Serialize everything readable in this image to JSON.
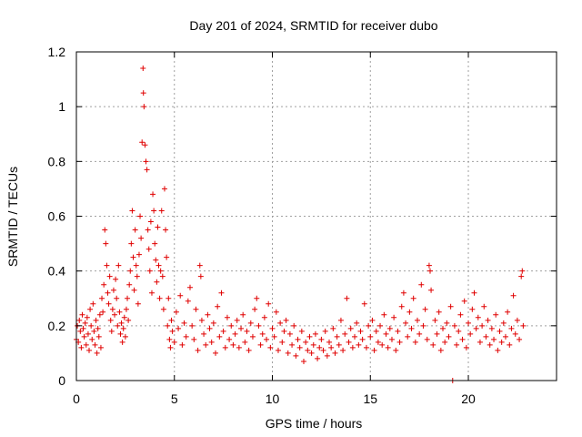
{
  "chart_data": {
    "type": "scatter",
    "title": "Day 201 of 2024, SRMTID for receiver dubo",
    "xlabel": "GPS time / hours",
    "ylabel": "SRMTID / TECUs",
    "xlim": [
      0,
      24.5
    ],
    "ylim": [
      0,
      1.2
    ],
    "xticks": [
      0,
      5,
      10,
      15,
      20
    ],
    "xtick_labels": [
      "0",
      "5",
      "10",
      "15",
      "20"
    ],
    "yticks": [
      0,
      0.2,
      0.4,
      0.6,
      0.8,
      1,
      1.2
    ],
    "ytick_labels": [
      "0",
      "0.2",
      "0.4",
      "0.6",
      "0.8",
      "1",
      "1.2"
    ],
    "grid": true,
    "marker": "+",
    "color": "#e00000",
    "series": [
      {
        "name": "SRMTID",
        "points": [
          [
            0.0,
            0.15
          ],
          [
            0.05,
            0.2
          ],
          [
            0.1,
            0.14
          ],
          [
            0.15,
            0.22
          ],
          [
            0.2,
            0.18
          ],
          [
            0.25,
            0.12
          ],
          [
            0.3,
            0.24
          ],
          [
            0.35,
            0.19
          ],
          [
            0.4,
            0.16
          ],
          [
            0.45,
            0.21
          ],
          [
            0.5,
            0.13
          ],
          [
            0.55,
            0.23
          ],
          [
            0.6,
            0.17
          ],
          [
            0.65,
            0.11
          ],
          [
            0.7,
            0.26
          ],
          [
            0.75,
            0.2
          ],
          [
            0.8,
            0.15
          ],
          [
            0.85,
            0.28
          ],
          [
            0.9,
            0.18
          ],
          [
            0.95,
            0.13
          ],
          [
            1.0,
            0.22
          ],
          [
            1.05,
            0.1
          ],
          [
            1.1,
            0.19
          ],
          [
            1.15,
            0.16
          ],
          [
            1.2,
            0.24
          ],
          [
            1.25,
            0.12
          ],
          [
            1.3,
            0.3
          ],
          [
            1.35,
            0.25
          ],
          [
            1.4,
            0.35
          ],
          [
            1.45,
            0.55
          ],
          [
            1.5,
            0.5
          ],
          [
            1.55,
            0.42
          ],
          [
            1.6,
            0.32
          ],
          [
            1.65,
            0.28
          ],
          [
            1.7,
            0.38
          ],
          [
            1.75,
            0.22
          ],
          [
            1.8,
            0.18
          ],
          [
            1.85,
            0.26
          ],
          [
            1.9,
            0.33
          ],
          [
            1.95,
            0.24
          ],
          [
            2.0,
            0.37
          ],
          [
            2.05,
            0.3
          ],
          [
            2.1,
            0.2
          ],
          [
            2.15,
            0.42
          ],
          [
            2.2,
            0.25
          ],
          [
            2.25,
            0.17
          ],
          [
            2.3,
            0.21
          ],
          [
            2.35,
            0.14
          ],
          [
            2.4,
            0.19
          ],
          [
            2.45,
            0.23
          ],
          [
            2.5,
            0.16
          ],
          [
            2.55,
            0.26
          ],
          [
            2.6,
            0.3
          ],
          [
            2.65,
            0.22
          ],
          [
            2.7,
            0.35
          ],
          [
            2.75,
            0.4
          ],
          [
            2.8,
            0.5
          ],
          [
            2.85,
            0.62
          ],
          [
            2.9,
            0.45
          ],
          [
            2.95,
            0.33
          ],
          [
            3.0,
            0.55
          ],
          [
            3.05,
            0.42
          ],
          [
            3.1,
            0.38
          ],
          [
            3.15,
            0.28
          ],
          [
            3.2,
            0.46
          ],
          [
            3.25,
            0.6
          ],
          [
            3.3,
            0.52
          ],
          [
            3.35,
            0.87
          ],
          [
            3.4,
            1.14
          ],
          [
            3.42,
            1.05
          ],
          [
            3.45,
            1.0
          ],
          [
            3.5,
            0.86
          ],
          [
            3.55,
            0.8
          ],
          [
            3.6,
            0.77
          ],
          [
            3.65,
            0.55
          ],
          [
            3.7,
            0.48
          ],
          [
            3.75,
            0.4
          ],
          [
            3.8,
            0.58
          ],
          [
            3.85,
            0.32
          ],
          [
            3.9,
            0.68
          ],
          [
            3.95,
            0.62
          ],
          [
            4.0,
            0.5
          ],
          [
            4.05,
            0.44
          ],
          [
            4.1,
            0.36
          ],
          [
            4.15,
            0.56
          ],
          [
            4.2,
            0.42
          ],
          [
            4.25,
            0.3
          ],
          [
            4.3,
            0.4
          ],
          [
            4.35,
            0.62
          ],
          [
            4.4,
            0.38
          ],
          [
            4.45,
            0.26
          ],
          [
            4.5,
            0.7
          ],
          [
            4.55,
            0.55
          ],
          [
            4.6,
            0.45
          ],
          [
            4.65,
            0.2
          ],
          [
            4.7,
            0.3
          ],
          [
            4.75,
            0.15
          ],
          [
            4.8,
            0.12
          ],
          [
            4.85,
            0.22
          ],
          [
            4.9,
            0.18
          ],
          [
            5.0,
            0.14
          ],
          [
            5.1,
            0.25
          ],
          [
            5.2,
            0.19
          ],
          [
            5.3,
            0.31
          ],
          [
            5.4,
            0.13
          ],
          [
            5.5,
            0.21
          ],
          [
            5.6,
            0.16
          ],
          [
            5.7,
            0.29
          ],
          [
            5.8,
            0.34
          ],
          [
            5.9,
            0.2
          ],
          [
            6.0,
            0.15
          ],
          [
            6.1,
            0.26
          ],
          [
            6.2,
            0.11
          ],
          [
            6.3,
            0.42
          ],
          [
            6.35,
            0.38
          ],
          [
            6.4,
            0.22
          ],
          [
            6.5,
            0.17
          ],
          [
            6.6,
            0.13
          ],
          [
            6.7,
            0.24
          ],
          [
            6.8,
            0.19
          ],
          [
            6.9,
            0.14
          ],
          [
            7.0,
            0.21
          ],
          [
            7.1,
            0.1
          ],
          [
            7.2,
            0.27
          ],
          [
            7.3,
            0.16
          ],
          [
            7.4,
            0.32
          ],
          [
            7.5,
            0.18
          ],
          [
            7.6,
            0.12
          ],
          [
            7.7,
            0.23
          ],
          [
            7.8,
            0.15
          ],
          [
            7.9,
            0.2
          ],
          [
            8.0,
            0.13
          ],
          [
            8.1,
            0.17
          ],
          [
            8.2,
            0.22
          ],
          [
            8.3,
            0.12
          ],
          [
            8.4,
            0.19
          ],
          [
            8.5,
            0.24
          ],
          [
            8.6,
            0.14
          ],
          [
            8.7,
            0.18
          ],
          [
            8.8,
            0.11
          ],
          [
            8.9,
            0.21
          ],
          [
            9.0,
            0.16
          ],
          [
            9.1,
            0.26
          ],
          [
            9.2,
            0.3
          ],
          [
            9.3,
            0.2
          ],
          [
            9.4,
            0.13
          ],
          [
            9.5,
            0.17
          ],
          [
            9.6,
            0.23
          ],
          [
            9.7,
            0.15
          ],
          [
            9.8,
            0.28
          ],
          [
            9.9,
            0.12
          ],
          [
            10.0,
            0.19
          ],
          [
            10.1,
            0.16
          ],
          [
            10.2,
            0.25
          ],
          [
            10.3,
            0.11
          ],
          [
            10.4,
            0.21
          ],
          [
            10.5,
            0.14
          ],
          [
            10.6,
            0.18
          ],
          [
            10.7,
            0.22
          ],
          [
            10.8,
            0.1
          ],
          [
            10.9,
            0.17
          ],
          [
            11.0,
            0.13
          ],
          [
            11.1,
            0.2
          ],
          [
            11.2,
            0.09
          ],
          [
            11.3,
            0.15
          ],
          [
            11.4,
            0.12
          ],
          [
            11.5,
            0.18
          ],
          [
            11.6,
            0.07
          ],
          [
            11.7,
            0.14
          ],
          [
            11.8,
            0.11
          ],
          [
            11.9,
            0.16
          ],
          [
            12.0,
            0.1
          ],
          [
            12.1,
            0.13
          ],
          [
            12.2,
            0.17
          ],
          [
            12.3,
            0.08
          ],
          [
            12.4,
            0.12
          ],
          [
            12.5,
            0.15
          ],
          [
            12.6,
            0.11
          ],
          [
            12.7,
            0.18
          ],
          [
            12.8,
            0.09
          ],
          [
            12.9,
            0.14
          ],
          [
            13.0,
            0.12
          ],
          [
            13.1,
            0.19
          ],
          [
            13.2,
            0.1
          ],
          [
            13.3,
            0.16
          ],
          [
            13.4,
            0.13
          ],
          [
            13.5,
            0.22
          ],
          [
            13.6,
            0.11
          ],
          [
            13.7,
            0.17
          ],
          [
            13.8,
            0.3
          ],
          [
            13.9,
            0.14
          ],
          [
            14.0,
            0.19
          ],
          [
            14.1,
            0.12
          ],
          [
            14.2,
            0.16
          ],
          [
            14.3,
            0.21
          ],
          [
            14.4,
            0.13
          ],
          [
            14.5,
            0.18
          ],
          [
            14.6,
            0.15
          ],
          [
            14.7,
            0.28
          ],
          [
            14.8,
            0.12
          ],
          [
            14.9,
            0.2
          ],
          [
            15.0,
            0.16
          ],
          [
            15.1,
            0.22
          ],
          [
            15.2,
            0.11
          ],
          [
            15.3,
            0.18
          ],
          [
            15.4,
            0.14
          ],
          [
            15.5,
            0.2
          ],
          [
            15.6,
            0.13
          ],
          [
            15.7,
            0.24
          ],
          [
            15.8,
            0.17
          ],
          [
            15.9,
            0.12
          ],
          [
            16.0,
            0.19
          ],
          [
            16.1,
            0.15
          ],
          [
            16.2,
            0.23
          ],
          [
            16.3,
            0.11
          ],
          [
            16.4,
            0.18
          ],
          [
            16.5,
            0.14
          ],
          [
            16.6,
            0.27
          ],
          [
            16.7,
            0.32
          ],
          [
            16.8,
            0.21
          ],
          [
            16.9,
            0.16
          ],
          [
            17.0,
            0.25
          ],
          [
            17.1,
            0.19
          ],
          [
            17.2,
            0.3
          ],
          [
            17.3,
            0.14
          ],
          [
            17.4,
            0.22
          ],
          [
            17.5,
            0.17
          ],
          [
            17.6,
            0.35
          ],
          [
            17.7,
            0.2
          ],
          [
            17.8,
            0.26
          ],
          [
            17.9,
            0.15
          ],
          [
            18.0,
            0.42
          ],
          [
            18.05,
            0.4
          ],
          [
            18.1,
            0.33
          ],
          [
            18.2,
            0.13
          ],
          [
            18.3,
            0.22
          ],
          [
            18.4,
            0.17
          ],
          [
            18.5,
            0.25
          ],
          [
            18.6,
            0.11
          ],
          [
            18.7,
            0.19
          ],
          [
            18.8,
            0.14
          ],
          [
            18.9,
            0.21
          ],
          [
            19.0,
            0.16
          ],
          [
            19.1,
            0.27
          ],
          [
            19.2,
            0.0
          ],
          [
            19.3,
            0.2
          ],
          [
            19.4,
            0.13
          ],
          [
            19.5,
            0.18
          ],
          [
            19.6,
            0.24
          ],
          [
            19.7,
            0.15
          ],
          [
            19.8,
            0.29
          ],
          [
            19.9,
            0.12
          ],
          [
            20.0,
            0.21
          ],
          [
            20.1,
            0.17
          ],
          [
            20.2,
            0.26
          ],
          [
            20.3,
            0.32
          ],
          [
            20.4,
            0.19
          ],
          [
            20.5,
            0.23
          ],
          [
            20.6,
            0.14
          ],
          [
            20.7,
            0.2
          ],
          [
            20.8,
            0.27
          ],
          [
            20.9,
            0.16
          ],
          [
            21.0,
            0.22
          ],
          [
            21.1,
            0.13
          ],
          [
            21.2,
            0.19
          ],
          [
            21.3,
            0.15
          ],
          [
            21.4,
            0.24
          ],
          [
            21.5,
            0.11
          ],
          [
            21.6,
            0.18
          ],
          [
            21.7,
            0.14
          ],
          [
            21.8,
            0.21
          ],
          [
            21.9,
            0.16
          ],
          [
            22.0,
            0.25
          ],
          [
            22.1,
            0.13
          ],
          [
            22.2,
            0.19
          ],
          [
            22.3,
            0.31
          ],
          [
            22.4,
            0.17
          ],
          [
            22.5,
            0.22
          ],
          [
            22.6,
            0.15
          ],
          [
            22.7,
            0.38
          ],
          [
            22.75,
            0.4
          ],
          [
            22.8,
            0.2
          ]
        ]
      }
    ]
  }
}
